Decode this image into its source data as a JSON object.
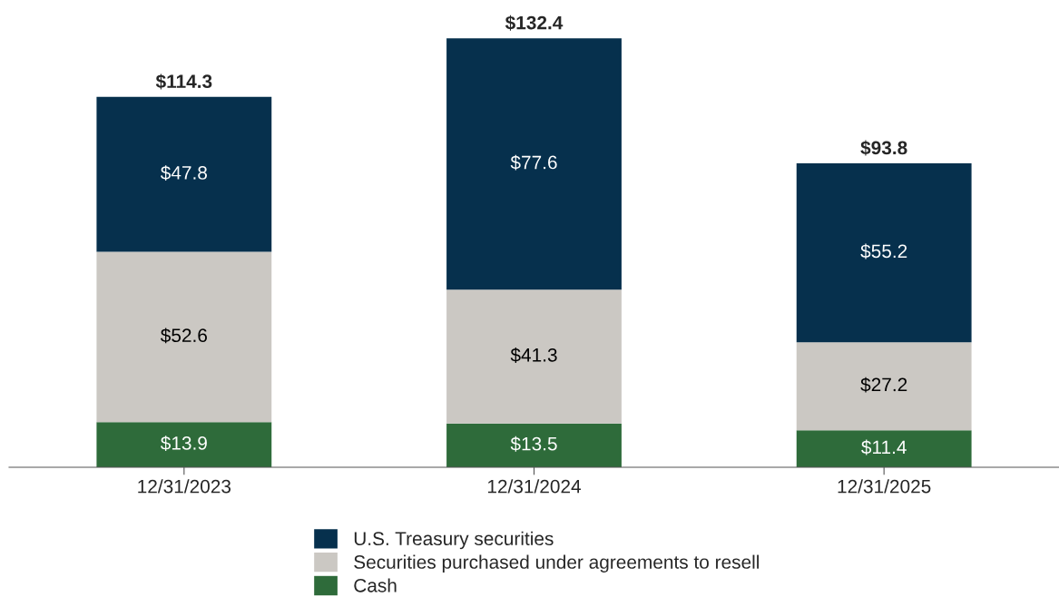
{
  "chart_data": {
    "type": "bar",
    "stacked": true,
    "categories": [
      "12/31/2023",
      "12/31/2024",
      "12/31/2025"
    ],
    "series": [
      {
        "name": "Cash",
        "color": "#2e6b3a",
        "values": [
          13.9,
          13.5,
          11.4
        ],
        "value_labels": [
          "$13.9",
          "$13.5",
          "$11.4"
        ]
      },
      {
        "name": "Securities purchased under agreements to resell",
        "color": "#cbc8c3",
        "values": [
          52.6,
          41.3,
          27.2
        ],
        "value_labels": [
          "$52.6",
          "$41.3",
          "$27.2"
        ]
      },
      {
        "name": "U.S. Treasury securities",
        "color": "#06304d",
        "values": [
          47.8,
          77.6,
          55.2
        ],
        "value_labels": [
          "$47.8",
          "$77.6",
          "$55.2"
        ]
      }
    ],
    "totals": [
      "$114.3",
      "$132.4",
      "$93.8"
    ],
    "legend": "bottom",
    "grid": false
  }
}
